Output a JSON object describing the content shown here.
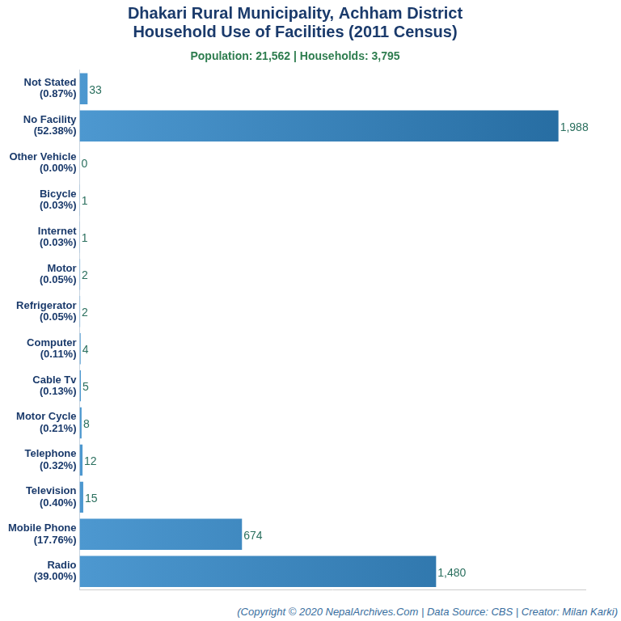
{
  "chart_data": {
    "type": "bar",
    "orientation": "horizontal",
    "title": [
      "Dhakari Rural Municipality, Achham District",
      "Household Use of Facilities (2011 Census)"
    ],
    "subtitle": "Population: 21,562 | Households: 3,795",
    "caption": "(Copyright © 2020 NepalArchives.Com | Data Source: CBS | Creator: Milan Karki)",
    "categories": [
      [
        "Not Stated",
        "(0.87%)"
      ],
      [
        "No Facility",
        "(52.38%)"
      ],
      [
        "Other Vehicle",
        "(0.00%)"
      ],
      [
        "Bicycle",
        "(0.03%)"
      ],
      [
        "Internet",
        "(0.03%)"
      ],
      [
        "Motor",
        "(0.05%)"
      ],
      [
        "Refrigerator",
        "(0.05%)"
      ],
      [
        "Computer",
        "(0.11%)"
      ],
      [
        "Cable Tv",
        "(0.13%)"
      ],
      [
        "Motor Cycle",
        "(0.21%)"
      ],
      [
        "Telephone",
        "(0.32%)"
      ],
      [
        "Television",
        "(0.40%)"
      ],
      [
        "Mobile Phone",
        "(17.76%)"
      ],
      [
        "Radio",
        "(39.00%)"
      ]
    ],
    "values": [
      33,
      1988,
      0,
      1,
      1,
      2,
      2,
      4,
      5,
      8,
      12,
      15,
      674,
      1480
    ],
    "value_labels": [
      "33",
      "1,988",
      "0",
      "1",
      "1",
      "2",
      "2",
      "4",
      "5",
      "8",
      "12",
      "15",
      "674",
      "1,480"
    ],
    "data_labels": true,
    "color": "#2e86c8",
    "xlim": [
      0,
      2100
    ],
    "grid": false,
    "tick_labels": "y"
  }
}
